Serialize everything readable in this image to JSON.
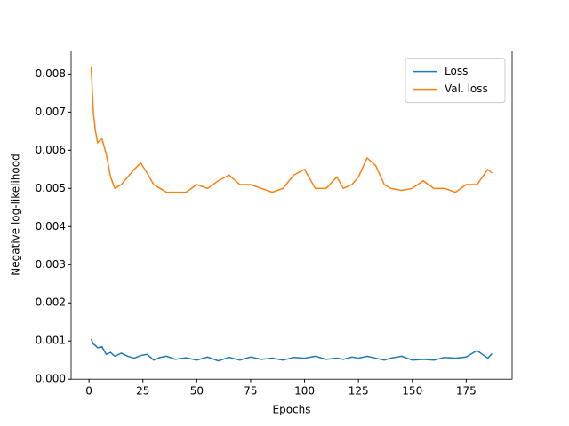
{
  "chart_data": {
    "type": "line",
    "xlabel": "Epochs",
    "ylabel": "Negative log-likelihood",
    "x": [
      1,
      2,
      3,
      4,
      6,
      8,
      10,
      12,
      15,
      18,
      21,
      24,
      27,
      30,
      33,
      36,
      40,
      45,
      50,
      55,
      60,
      65,
      70,
      75,
      80,
      85,
      90,
      95,
      100,
      105,
      110,
      115,
      118,
      122,
      125,
      129,
      133,
      137,
      140,
      145,
      150,
      155,
      160,
      165,
      170,
      175,
      180,
      185,
      187
    ],
    "series": [
      {
        "name": "Loss",
        "color": "#1f77b4",
        "values": [
          0.00105,
          0.00092,
          0.00088,
          0.00082,
          0.00085,
          0.00065,
          0.0007,
          0.0006,
          0.00068,
          0.0006,
          0.00055,
          0.00062,
          0.00065,
          0.0005,
          0.00057,
          0.0006,
          0.00052,
          0.00056,
          0.0005,
          0.00058,
          0.00048,
          0.00057,
          0.0005,
          0.00058,
          0.00052,
          0.00055,
          0.0005,
          0.00057,
          0.00055,
          0.0006,
          0.00052,
          0.00055,
          0.00052,
          0.00058,
          0.00055,
          0.0006,
          0.00055,
          0.0005,
          0.00055,
          0.0006,
          0.0005,
          0.00052,
          0.0005,
          0.00057,
          0.00055,
          0.00058,
          0.00075,
          0.00055,
          0.00067
        ]
      },
      {
        "name": "Val. loss",
        "color": "#ff7f0e",
        "values": [
          0.0082,
          0.007,
          0.0065,
          0.0062,
          0.0063,
          0.0059,
          0.0053,
          0.005,
          0.0051,
          0.0053,
          0.0055,
          0.00567,
          0.0054,
          0.0051,
          0.005,
          0.0049,
          0.0049,
          0.0049,
          0.0051,
          0.005,
          0.0052,
          0.00535,
          0.0051,
          0.0051,
          0.005,
          0.0049,
          0.005,
          0.00535,
          0.0055,
          0.005,
          0.005,
          0.0053,
          0.005,
          0.0051,
          0.0053,
          0.0058,
          0.0056,
          0.0051,
          0.005,
          0.00495,
          0.005,
          0.0052,
          0.005,
          0.005,
          0.0049,
          0.0051,
          0.0051,
          0.0055,
          0.0054
        ]
      }
    ],
    "xlim": [
      -8.3,
      196.3
    ],
    "xticks": [
      0,
      25,
      50,
      75,
      100,
      125,
      150,
      175
    ],
    "ylim": [
      0,
      0.0086
    ],
    "yticks": [
      {
        "value": 0,
        "label": "0.000"
      },
      {
        "value": 0.001,
        "label": "0.001"
      },
      {
        "value": 0.002,
        "label": "0.002"
      },
      {
        "value": 0.003,
        "label": "0.003"
      },
      {
        "value": 0.004,
        "label": "0.004"
      },
      {
        "value": 0.005,
        "label": "0.005"
      },
      {
        "value": 0.006,
        "label": "0.006"
      },
      {
        "value": 0.007,
        "label": "0.007"
      },
      {
        "value": 0.008,
        "label": "0.008"
      }
    ],
    "legend": "upper right"
  }
}
